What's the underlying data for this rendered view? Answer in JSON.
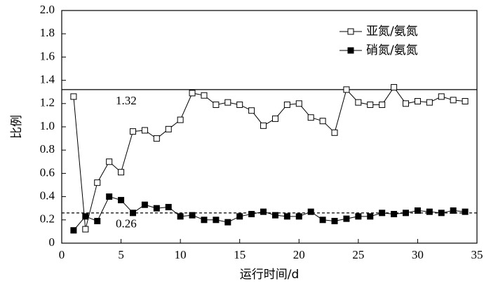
{
  "chart_data": {
    "type": "line",
    "x_label": "运行时间/d",
    "y_label": "比例",
    "x": [
      1,
      2,
      3,
      4,
      5,
      6,
      7,
      8,
      9,
      10,
      11,
      12,
      13,
      14,
      15,
      16,
      17,
      18,
      19,
      20,
      21,
      22,
      23,
      24,
      25,
      26,
      27,
      28,
      29,
      30,
      31,
      32,
      33,
      34
    ],
    "series": [
      {
        "name": "亚氮/氨氮",
        "color": "#000000",
        "marker": "open-square",
        "values": [
          1.26,
          0.12,
          0.52,
          0.7,
          0.61,
          0.96,
          0.97,
          0.9,
          0.98,
          1.06,
          1.29,
          1.27,
          1.19,
          1.21,
          1.19,
          1.14,
          1.01,
          1.07,
          1.19,
          1.2,
          1.08,
          1.05,
          0.95,
          1.32,
          1.21,
          1.19,
          1.19,
          1.34,
          1.2,
          1.22,
          1.21,
          1.26,
          1.23,
          1.22
        ]
      },
      {
        "name": "硝氮/氨氮",
        "color": "#000000",
        "marker": "filled-square",
        "values": [
          0.11,
          0.23,
          0.19,
          0.4,
          0.37,
          0.26,
          0.33,
          0.3,
          0.31,
          0.23,
          0.24,
          0.2,
          0.2,
          0.18,
          0.23,
          0.25,
          0.27,
          0.24,
          0.23,
          0.23,
          0.27,
          0.2,
          0.19,
          0.21,
          0.23,
          0.23,
          0.26,
          0.25,
          0.26,
          0.28,
          0.27,
          0.26,
          0.28,
          0.27
        ]
      }
    ],
    "reference_lines": [
      {
        "value": 1.32,
        "style": "solid"
      },
      {
        "value": 0.26,
        "style": "dashed"
      }
    ],
    "xlim": [
      0,
      35
    ],
    "xticks": [
      0,
      5,
      10,
      15,
      20,
      25,
      30,
      35
    ],
    "ylim": [
      0,
      2
    ],
    "yticks": [
      0,
      0.2,
      0.4,
      0.6,
      0.8,
      {
        "value": 1,
        "label": "1.0"
      },
      1.2,
      1.4,
      1.6,
      1.8,
      {
        "value": 2,
        "label": "2.0"
      }
    ],
    "legend": "upper-right"
  }
}
